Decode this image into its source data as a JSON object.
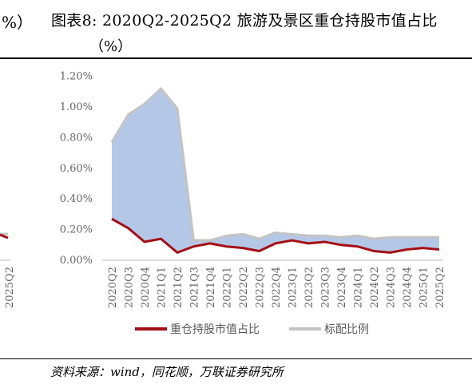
{
  "header": {
    "left_fragment": "%）",
    "title": "图表8:  2020Q2-2025Q2  旅游及景区重仓持股市值占比",
    "title_unit": "（%）"
  },
  "left_panel": {
    "last_tick": "2025Q2"
  },
  "chart_data": {
    "type": "area",
    "categories": [
      "2020Q2",
      "2020Q3",
      "2020Q4",
      "2021Q1",
      "2021Q2",
      "2021Q3",
      "2021Q4",
      "2022Q1",
      "2022Q2",
      "2022Q3",
      "2022Q4",
      "2023Q1",
      "2023Q2",
      "2023Q3",
      "2023Q4",
      "2024Q1",
      "2024Q2",
      "2024Q3",
      "2024Q4",
      "2025Q1",
      "2025Q2"
    ],
    "series": [
      {
        "name": "重仓持股市值占比",
        "color": "#A50F15",
        "values": [
          0.27,
          0.21,
          0.12,
          0.14,
          0.05,
          0.09,
          0.11,
          0.09,
          0.08,
          0.06,
          0.11,
          0.13,
          0.11,
          0.12,
          0.1,
          0.09,
          0.06,
          0.05,
          0.07,
          0.08,
          0.07
        ]
      },
      {
        "name": "标配比例",
        "color": "#C4C4C4",
        "values": [
          0.77,
          0.95,
          1.02,
          1.12,
          0.99,
          0.13,
          0.13,
          0.16,
          0.17,
          0.14,
          0.18,
          0.17,
          0.16,
          0.16,
          0.15,
          0.16,
          0.14,
          0.15,
          0.15,
          0.15,
          0.15
        ]
      }
    ],
    "fill_color": "#B4C7E7",
    "ylim": [
      0,
      1.2
    ],
    "yticks": [
      "0.00%",
      "0.20%",
      "0.40%",
      "0.60%",
      "0.80%",
      "1.00%",
      "1.20%"
    ],
    "legend_position": "bottom",
    "grid": false
  },
  "footer": {
    "source": "资料来源：wind，同花顺，万联证券研究所"
  }
}
